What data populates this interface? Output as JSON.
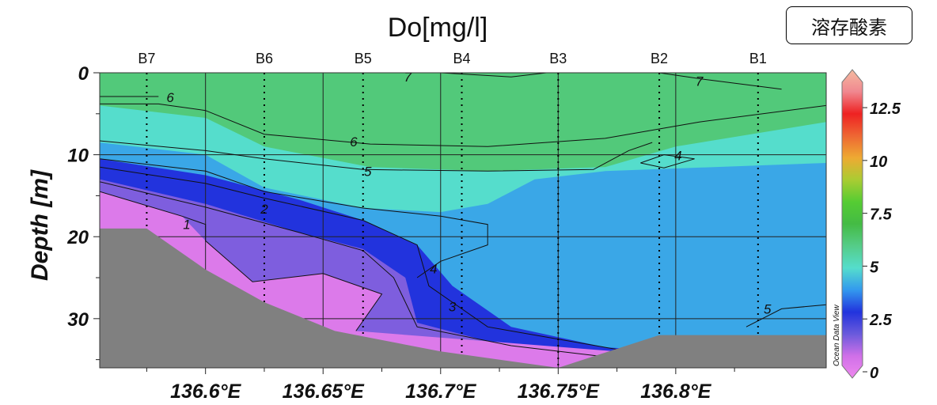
{
  "tag": "溶存酸素",
  "watermark": "Ocean Data View",
  "chart_data": {
    "type": "heatmap",
    "title": "Do[mg/l]",
    "xlabel": "",
    "ylabel": "Depth [m]",
    "xlim": [
      136.555,
      136.864
    ],
    "ylim": [
      36,
      0
    ],
    "x_ticks": [
      {
        "value": 136.6,
        "label": "136.6°E"
      },
      {
        "value": 136.65,
        "label": "136.65°E"
      },
      {
        "value": 136.7,
        "label": "136.7°E"
      },
      {
        "value": 136.75,
        "label": "136.75°E"
      },
      {
        "value": 136.8,
        "label": "136.8°E"
      }
    ],
    "y_ticks": [
      {
        "value": 0,
        "label": "0"
      },
      {
        "value": 10,
        "label": "10"
      },
      {
        "value": 20,
        "label": "20"
      },
      {
        "value": 30,
        "label": "30"
      }
    ],
    "grid": true,
    "stations": [
      {
        "name": "B7",
        "lon": 136.575
      },
      {
        "name": "B6",
        "lon": 136.625
      },
      {
        "name": "B5",
        "lon": 136.667
      },
      {
        "name": "B4",
        "lon": 136.709
      },
      {
        "name": "B3",
        "lon": 136.75
      },
      {
        "name": "B2",
        "lon": 136.793
      },
      {
        "name": "B1",
        "lon": 136.835
      }
    ],
    "bottom_depth": [
      {
        "lon": 136.555,
        "depth": 19
      },
      {
        "lon": 136.575,
        "depth": 19
      },
      {
        "lon": 136.6,
        "depth": 24
      },
      {
        "lon": 136.625,
        "depth": 28
      },
      {
        "lon": 136.655,
        "depth": 31.5
      },
      {
        "lon": 136.7,
        "depth": 34
      },
      {
        "lon": 136.75,
        "depth": 36
      },
      {
        "lon": 136.793,
        "depth": 32
      },
      {
        "lon": 136.864,
        "depth": 32
      }
    ],
    "layers": [
      {
        "name": "surface",
        "value": 6.2,
        "top": [
          [
            136.555,
            0
          ],
          [
            136.864,
            0
          ]
        ]
      },
      {
        "name": "layer-5-6",
        "value": 5.0,
        "top": [
          [
            136.555,
            4
          ],
          [
            136.6,
            5.5
          ],
          [
            136.625,
            9
          ],
          [
            136.67,
            11.5
          ],
          [
            136.72,
            12
          ],
          [
            136.77,
            11.5
          ],
          [
            136.8,
            9
          ],
          [
            136.864,
            6
          ]
        ]
      },
      {
        "name": "layer-4-5",
        "value": 4.2,
        "top": [
          [
            136.555,
            8.5
          ],
          [
            136.6,
            10
          ],
          [
            136.625,
            14
          ],
          [
            136.667,
            16.5
          ],
          [
            136.7,
            17
          ],
          [
            136.72,
            16
          ],
          [
            136.74,
            13
          ],
          [
            136.77,
            12
          ],
          [
            136.864,
            11
          ]
        ]
      },
      {
        "name": "layer-3-4",
        "value": 3.0,
        "top": [
          [
            136.555,
            10.5
          ],
          [
            136.6,
            12.5
          ],
          [
            136.64,
            15.5
          ],
          [
            136.667,
            18
          ],
          [
            136.69,
            21
          ],
          [
            136.705,
            26
          ],
          [
            136.73,
            31
          ],
          [
            136.77,
            33.5
          ],
          [
            136.864,
            35
          ]
        ]
      },
      {
        "name": "layer-2-3",
        "value": 1.8,
        "top": [
          [
            136.555,
            13
          ],
          [
            136.6,
            16
          ],
          [
            136.64,
            19.5
          ],
          [
            136.667,
            21.5
          ],
          [
            136.685,
            25
          ],
          [
            136.69,
            30.5
          ],
          [
            136.73,
            33.5
          ],
          [
            136.864,
            36
          ]
        ]
      },
      {
        "name": "layer-below-1",
        "value": 0.6,
        "top": [
          [
            136.555,
            14.5
          ],
          [
            136.59,
            17.5
          ],
          [
            136.6,
            20.5
          ],
          [
            136.62,
            25.5
          ],
          [
            136.65,
            24.5
          ],
          [
            136.675,
            27
          ],
          [
            136.664,
            31.5
          ],
          [
            136.864,
            36
          ]
        ]
      }
    ],
    "contours": [
      {
        "level": 7,
        "label": "7",
        "points": [
          [
            136.7,
            0
          ],
          [
            136.73,
            0.5
          ],
          [
            136.745,
            0
          ]
        ],
        "label_at": [
          136.686,
          0.5
        ]
      },
      {
        "level": 7,
        "label": "7",
        "points": [
          [
            136.793,
            0
          ],
          [
            136.812,
            0.8
          ],
          [
            136.845,
            2
          ]
        ],
        "label_at": [
          136.81,
          1.0
        ]
      },
      {
        "level": 6,
        "label": "6",
        "points": [
          [
            136.555,
            3.8
          ],
          [
            136.58,
            3.8
          ],
          [
            136.6,
            4.6
          ],
          [
            136.625,
            7.5
          ],
          [
            136.67,
            8.7
          ],
          [
            136.72,
            9
          ],
          [
            136.77,
            8
          ],
          [
            136.81,
            6
          ],
          [
            136.864,
            4
          ]
        ],
        "label_at": [
          136.663,
          8.4
        ]
      },
      {
        "level": 6,
        "label": "6",
        "points": [
          [
            136.553,
            2.9
          ],
          [
            136.58,
            2.9
          ]
        ],
        "label_at": [
          136.585,
          3.0
        ]
      },
      {
        "level": 5,
        "label": "5",
        "points": [
          [
            136.555,
            8.3
          ],
          [
            136.6,
            9.5
          ],
          [
            136.625,
            10.5
          ],
          [
            136.667,
            11.8
          ],
          [
            136.72,
            12
          ],
          [
            136.765,
            11.8
          ],
          [
            136.78,
            9.5
          ],
          [
            136.79,
            8.5
          ]
        ],
        "label_at": [
          136.669,
          12
        ]
      },
      {
        "level": 5,
        "label": "5",
        "points": [
          [
            136.83,
            31
          ],
          [
            136.845,
            28.8
          ],
          [
            136.864,
            28.3
          ]
        ],
        "label_at": [
          136.839,
          28.8
        ]
      },
      {
        "level": 4,
        "label": "4",
        "points": [
          [
            136.555,
            10.5
          ],
          [
            136.6,
            12
          ],
          [
            136.625,
            14.5
          ],
          [
            136.667,
            16.5
          ],
          [
            136.7,
            17.5
          ],
          [
            136.72,
            18.5
          ],
          [
            136.72,
            21
          ],
          [
            136.7,
            23
          ],
          [
            136.69,
            25
          ]
        ],
        "label_at": [
          136.697,
          23.9
        ]
      },
      {
        "level": 4,
        "label": "4",
        "points": [
          [
            136.785,
            11
          ],
          [
            136.795,
            10
          ],
          [
            136.808,
            10.5
          ],
          [
            136.795,
            11.6
          ],
          [
            136.785,
            11
          ]
        ],
        "label_at": [
          136.801,
          10.1
        ]
      },
      {
        "level": 3,
        "label": "3",
        "points": [
          [
            136.555,
            11.5
          ],
          [
            136.6,
            13.5
          ],
          [
            136.625,
            15.3
          ],
          [
            136.667,
            18
          ],
          [
            136.69,
            21
          ],
          [
            136.695,
            26
          ],
          [
            136.72,
            31
          ],
          [
            136.77,
            33.5
          ],
          [
            136.78,
            34
          ]
        ],
        "label_at": [
          136.705,
          28.5
        ]
      },
      {
        "level": 2,
        "label": "2",
        "points": [
          [
            136.555,
            13.3
          ],
          [
            136.6,
            16.4
          ],
          [
            136.64,
            19.5
          ],
          [
            136.667,
            21.7
          ],
          [
            136.68,
            25
          ],
          [
            136.69,
            31
          ],
          [
            136.73,
            33.3
          ],
          [
            136.78,
            35
          ]
        ],
        "label_at": [
          136.625,
          16.6
        ]
      },
      {
        "level": 1,
        "label": "1",
        "points": [
          [
            136.555,
            14.5
          ],
          [
            136.59,
            17.5
          ],
          [
            136.6,
            18.5
          ],
          [
            136.6,
            20.5
          ],
          [
            136.62,
            25.5
          ],
          [
            136.65,
            24.5
          ],
          [
            136.675,
            27
          ],
          [
            136.664,
            31.5
          ]
        ],
        "label_at": [
          136.592,
          18.5
        ]
      }
    ],
    "colorbar": {
      "min": 0,
      "max": 14,
      "ticks": [
        {
          "value": 0,
          "label": "0"
        },
        {
          "value": 2.5,
          "label": "2.5"
        },
        {
          "value": 5,
          "label": "5"
        },
        {
          "value": 7.5,
          "label": "7.5"
        },
        {
          "value": 10,
          "label": "10"
        },
        {
          "value": 12.5,
          "label": "12.5"
        }
      ],
      "colors": [
        "#ee88ee",
        "#d070e8",
        "#6a5adc",
        "#2233dd",
        "#3399ee",
        "#55ddcc",
        "#55cc88",
        "#44bb44",
        "#55cc33",
        "#aacc33",
        "#eeaa33",
        "#ee6633",
        "#ee2222",
        "#f08890",
        "#f5bba0"
      ]
    },
    "colors": {
      "bottom": "#808080",
      "surface": "#5cbf45"
    }
  }
}
